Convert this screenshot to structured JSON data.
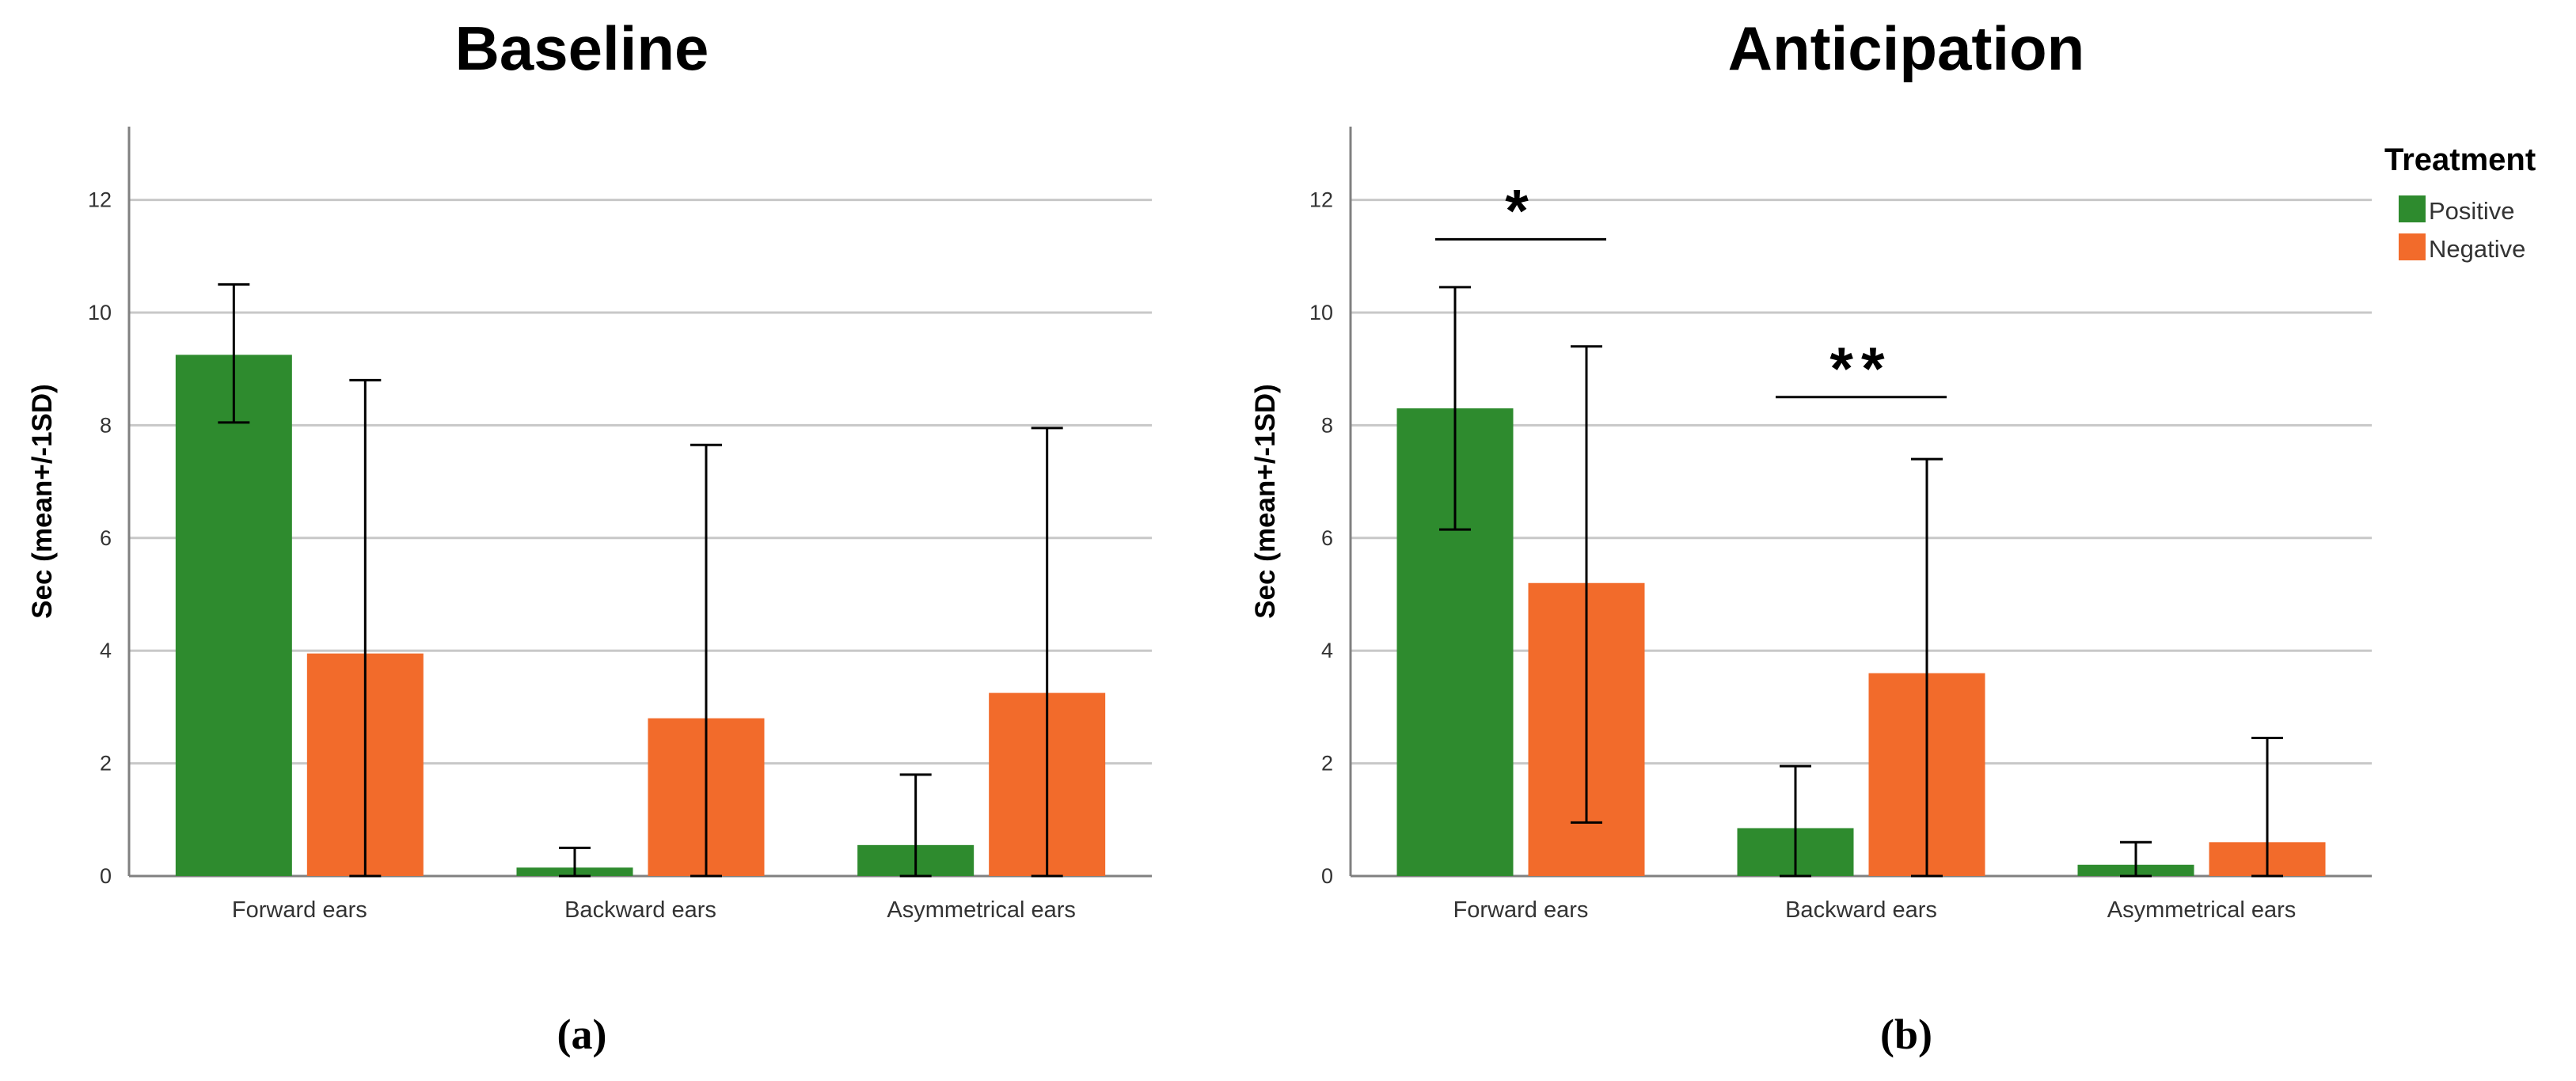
{
  "colors": {
    "positive": "#2e8b2e",
    "negative": "#f26b2b",
    "grid": "#c8c8c8",
    "axis": "#808080",
    "text": "#000000"
  },
  "legend": {
    "title": "Treatment",
    "items": [
      "Positive",
      "Negative"
    ]
  },
  "chart_data": [
    {
      "type": "bar",
      "title": "Baseline",
      "panel_label": "(a)",
      "xlabel": "",
      "ylabel": "Sec (mean+/-1SD)",
      "ylim": [
        0,
        13.3
      ],
      "yticks": [
        0,
        2,
        4,
        6,
        8,
        10,
        12
      ],
      "categories": [
        "Forward ears",
        "Backward ears",
        "Asymmetrical ears"
      ],
      "series": [
        {
          "name": "Positive",
          "values": [
            9.25,
            0.15,
            0.55
          ],
          "err_low": [
            8.05,
            0.0,
            0.0
          ],
          "err_high": [
            10.5,
            0.5,
            1.8
          ]
        },
        {
          "name": "Negative",
          "values": [
            3.95,
            2.8,
            3.25
          ],
          "err_low": [
            0.0,
            0.0,
            0.0
          ],
          "err_high": [
            8.8,
            7.65,
            7.95
          ]
        }
      ],
      "annotations": []
    },
    {
      "type": "bar",
      "title": "Anticipation",
      "panel_label": "(b)",
      "xlabel": "",
      "ylabel": "Sec (mean+/-1SD)",
      "ylim": [
        0,
        13.3
      ],
      "yticks": [
        0,
        2,
        4,
        6,
        8,
        10,
        12
      ],
      "categories": [
        "Forward ears",
        "Backward ears",
        "Asymmetrical ears"
      ],
      "series": [
        {
          "name": "Positive",
          "values": [
            8.3,
            0.85,
            0.2
          ],
          "err_low": [
            6.15,
            0.0,
            0.0
          ],
          "err_high": [
            10.45,
            1.95,
            0.6
          ]
        },
        {
          "name": "Negative",
          "values": [
            5.2,
            3.6,
            0.6
          ],
          "err_low": [
            0.95,
            0.0,
            0.0
          ],
          "err_high": [
            9.4,
            7.4,
            2.45
          ]
        }
      ],
      "annotations": [
        {
          "text": "*",
          "category_index": 0,
          "y": 11.3
        },
        {
          "text": "**",
          "category_index": 1,
          "y": 8.5
        }
      ]
    }
  ]
}
